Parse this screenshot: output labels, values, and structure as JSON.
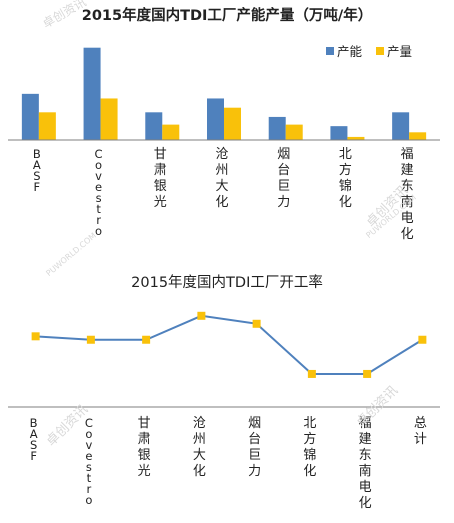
{
  "watermarks": {
    "brand": "卓创资讯",
    "site": "PUWORLD.COM"
  },
  "chart_data": [
    {
      "type": "bar",
      "title": "2015年度国内TDI工厂产能产量（万吨/年）",
      "categories": [
        "BASF",
        "Covestro",
        "甘肃银光",
        "沧州大化",
        "烟台巨力",
        "北方锦化",
        "福建东南电化"
      ],
      "series": [
        {
          "name": "产能",
          "color": "#4f81bd",
          "values": [
            30,
            60,
            18,
            27,
            15,
            9,
            18
          ]
        },
        {
          "name": "产量",
          "color": "#f9c10a",
          "values": [
            18,
            27,
            10,
            21,
            10,
            2,
            5
          ]
        }
      ],
      "ylim": [
        0,
        65
      ],
      "legend": "top-right",
      "grid": false
    },
    {
      "type": "line",
      "title": "2015年度国内TDI工厂开工率",
      "categories": [
        "BASF",
        "Covestro",
        "甘肃银光",
        "沧州大化",
        "烟台巨力",
        "北方锦化",
        "福建东南电化",
        "总计"
      ],
      "series": [
        {
          "color": "#4f81bd",
          "marker_color": "#f9c10a",
          "values": [
            0.62,
            0.59,
            0.59,
            0.8,
            0.73,
            0.29,
            0.29,
            0.59
          ]
        }
      ],
      "ylim": [
        0,
        1
      ],
      "grid": false
    }
  ]
}
